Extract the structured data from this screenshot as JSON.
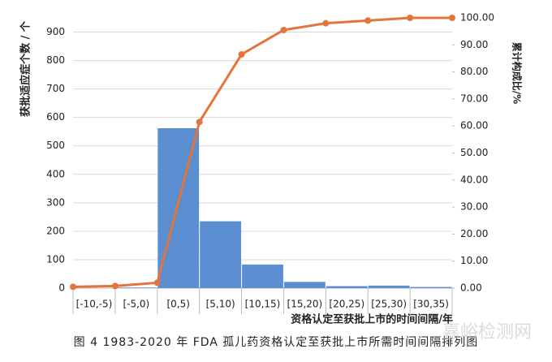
{
  "chart_data": {
    "type": "bar",
    "caption": "图 4  1983-2020 年 FDA 孤儿药资格认定至获批上市所需时间间隔排列图",
    "watermark": "嘉峪检测网",
    "ylabel": "获批适应症个数 / 个",
    "y2label": "累计构成比/%",
    "xlabel": "资格认定至获批上市的时间间隔/年",
    "categories": [
      "[-10,-5)",
      "[-5,0)",
      "[0,5)",
      "[5,10)",
      "[10,15)",
      "[15,20)",
      "[20,25)",
      "[25,30)",
      "[30,35)"
    ],
    "series": [
      {
        "color": "#5b8fd1",
        "values": [
          0,
          2,
          562,
          235,
          83,
          22,
          7,
          9,
          4
        ]
      },
      {
        "color": "#e4743c",
        "axis": "y2",
        "type": "line",
        "x": [
          -10,
          -5,
          0,
          5,
          10,
          15,
          20,
          25,
          30,
          35
        ],
        "values": [
          0.5,
          0.8,
          2,
          61.5,
          86.5,
          95.5,
          98,
          99,
          100,
          100
        ]
      }
    ],
    "xlim": [
      -10,
      35
    ],
    "ylim": [
      0,
      950
    ],
    "yticks": [
      0,
      100,
      200,
      300,
      400,
      500,
      600,
      700,
      800,
      900
    ],
    "y2lim": [
      0,
      100
    ],
    "y2ticks": [
      {
        "value": 0,
        "label": "0.00"
      },
      {
        "value": 10,
        "label": "10.00"
      },
      {
        "value": 20,
        "label": "20.00"
      },
      {
        "value": 30,
        "label": "30.00"
      },
      {
        "value": 40,
        "label": "40.00"
      },
      {
        "value": 50,
        "label": "50.00"
      },
      {
        "value": 60,
        "label": "60.00"
      },
      {
        "value": 70,
        "label": "70.00"
      },
      {
        "value": 80,
        "label": "80.00"
      },
      {
        "value": 90,
        "label": "90.00"
      },
      {
        "value": 100,
        "label": "100.00"
      }
    ],
    "grid": true
  }
}
